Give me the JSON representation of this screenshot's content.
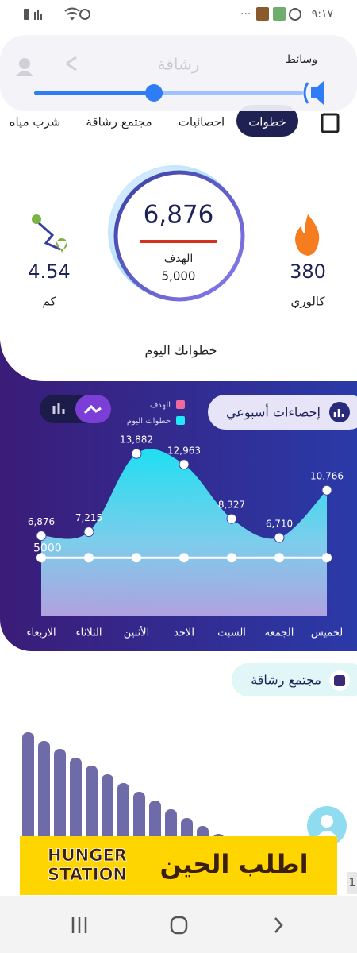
{
  "status_bar": {
    "time": "٩:١٧"
  },
  "media_panel": {
    "label": "وسائط",
    "app_title": "رشاقة"
  },
  "tabs": [
    {
      "label": "خطوات",
      "selected": true
    },
    {
      "label": "احصائيات",
      "selected": false
    },
    {
      "label": "مجتمع رشاقة",
      "selected": false
    },
    {
      "label": "شرب مياه",
      "selected": false
    }
  ],
  "today": {
    "steps": "6,876",
    "goal_label": "الهدف",
    "goal": "5,000",
    "distance": "4.54",
    "distance_unit": "كم",
    "calories": "380",
    "calories_unit": "كالوري",
    "caption": "خطواتك اليوم"
  },
  "weekly": {
    "title": "إحصاءات أسبوعي"
  },
  "chart_data": {
    "type": "area",
    "categories": [
      "الاربعاء",
      "الثلاثاء",
      "الأثنين",
      "الاحد",
      "السبت",
      "الجمعة",
      "لخميس"
    ],
    "series": [
      {
        "name": "خطوات اليوم",
        "color": "#22e7f6",
        "values": [
          6876,
          7215,
          13882,
          12963,
          8327,
          6710,
          10766
        ],
        "value_labels": [
          "6,876",
          "7,215",
          "13,882",
          "12,963",
          "8,327",
          "6,710",
          "10,766"
        ]
      },
      {
        "name": "الهدف",
        "color": "#f06aa0",
        "values": [
          5000,
          5000,
          5000,
          5000,
          5000,
          5000,
          5000
        ]
      }
    ],
    "ylim": [
      0,
      16000
    ]
  },
  "community": {
    "title": "مجتمع رشاقة"
  },
  "ad": {
    "brand_line1": "HUNGER",
    "brand_line2": "STATION",
    "cta": "اطلب الحين"
  },
  "page_indicator": "1"
}
